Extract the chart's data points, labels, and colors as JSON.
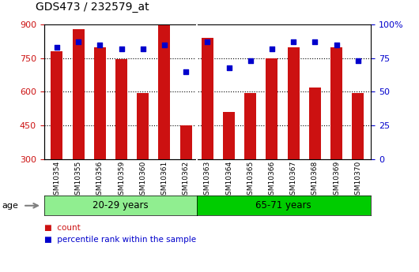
{
  "title": "GDS473 / 232579_at",
  "samples": [
    "GSM10354",
    "GSM10355",
    "GSM10356",
    "GSM10359",
    "GSM10360",
    "GSM10361",
    "GSM10362",
    "GSM10363",
    "GSM10364",
    "GSM10365",
    "GSM10366",
    "GSM10367",
    "GSM10368",
    "GSM10369",
    "GSM10370"
  ],
  "counts": [
    780,
    880,
    800,
    745,
    595,
    895,
    450,
    840,
    510,
    595,
    750,
    800,
    620,
    800,
    595
  ],
  "percentiles": [
    83,
    87,
    85,
    82,
    82,
    85,
    65,
    87,
    68,
    73,
    82,
    87,
    87,
    85,
    73
  ],
  "group1_label": "20-29 years",
  "group1_count": 7,
  "group2_label": "65-71 years",
  "group2_count": 8,
  "age_label": "age",
  "ylim_left": [
    300,
    900
  ],
  "ylim_right": [
    0,
    100
  ],
  "yticks_left": [
    300,
    450,
    600,
    750,
    900
  ],
  "yticks_right": [
    0,
    25,
    50,
    75,
    100
  ],
  "bar_color": "#cc1111",
  "dot_color": "#0000cc",
  "legend_count_label": "count",
  "legend_pct_label": "percentile rank within the sample",
  "group1_bg": "#90ee90",
  "group2_bg": "#00cc00",
  "tick_label_color_left": "#cc1111",
  "tick_label_color_right": "#0000cc",
  "xtick_bg": "#c0c0c0"
}
